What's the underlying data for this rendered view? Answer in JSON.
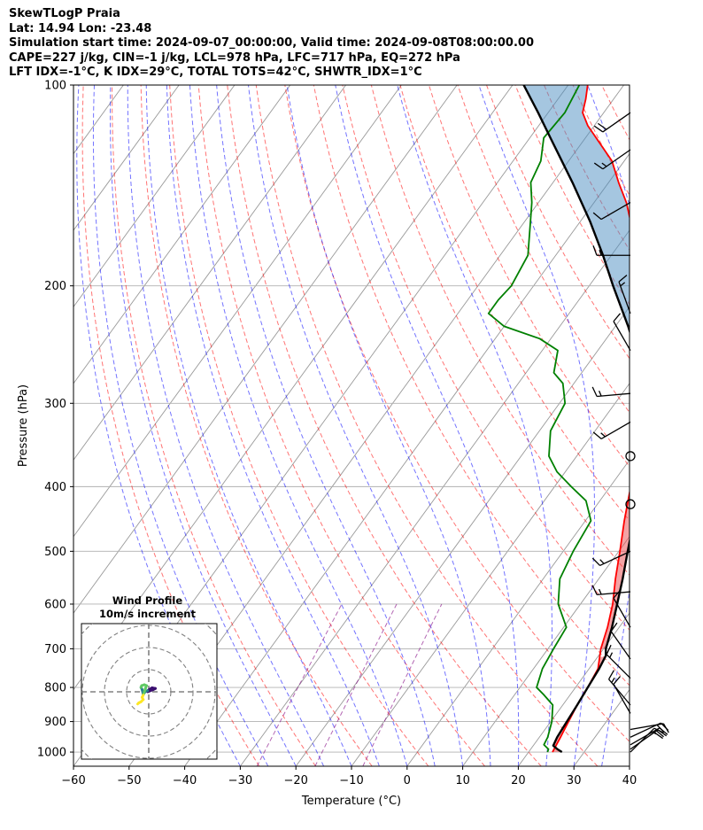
{
  "header": {
    "line1": "SkewTLogP Praia",
    "line2": "Lat: 14.94   Lon: -23.48",
    "line3": "Simulation start time: 2024-09-07_00:00:00, Valid time: 2024-09-08T08:00:00.00",
    "line4": "CAPE=227 j/kg, CIN=-1 j/kg, LCL=978 hPa, LFC=717 hPa, EQ=272 hPa",
    "line5": "LFT IDX=-1°C, K IDX=29°C, TOTAL TOTS=42°C, SHWTR_IDX=1°C"
  },
  "chart_data": [
    {
      "type": "skew-t log-p",
      "title": "SkewTLogP Praia",
      "xlabel": "Temperature (°C)",
      "ylabel": "Pressure (hPa)",
      "xlim": [
        -60,
        40
      ],
      "ylim": [
        1050,
        100
      ],
      "yscale": "log",
      "grid": true,
      "x_ticks": [
        "−60",
        "−50",
        "−40",
        "−30",
        "−20",
        "−10",
        "0",
        "10",
        "20",
        "30",
        "40"
      ],
      "y_ticks": [
        "1000",
        "900",
        "800",
        "700",
        "600",
        "500",
        "400",
        "300",
        "200",
        "100"
      ],
      "series": [
        {
          "kind": "temperature",
          "color": "#ff0000",
          "points": [
            [
              1000,
              24.3
            ],
            [
              950,
              23.8
            ],
            [
              900,
              23.2
            ],
            [
              850,
              22.6
            ],
            [
              800,
              22.2
            ],
            [
              750,
              21.6
            ],
            [
              700,
              19.5
            ],
            [
              650,
              17.9
            ],
            [
              600,
              15.8
            ],
            [
              550,
              13.0
            ],
            [
              500,
              10.2
            ],
            [
              450,
              7.0
            ],
            [
              400,
              3.7
            ],
            [
              350,
              0.0
            ],
            [
              300,
              -5.0
            ],
            [
              270,
              -9.0
            ],
            [
              250,
              -11.8
            ],
            [
              230,
              -15.4
            ],
            [
              210,
              -19.4
            ],
            [
              200,
              -21.7
            ],
            [
              180,
              -25.6
            ],
            [
              160,
              -31.0
            ],
            [
              150,
              -34.2
            ],
            [
              140,
              -38.2
            ],
            [
              130,
              -42.2
            ],
            [
              115,
              -51.2
            ],
            [
              110,
              -53.8
            ],
            [
              105,
              -55.0
            ],
            [
              100,
              -56.5
            ]
          ]
        },
        {
          "kind": "dewpoint",
          "color": "#008000",
          "points": [
            [
              1000,
              23.4
            ],
            [
              990,
              23.2
            ],
            [
              975,
              21.8
            ],
            [
              950,
              21.5
            ],
            [
              900,
              20.2
            ],
            [
              850,
              18.2
            ],
            [
              820,
              15.2
            ],
            [
              800,
              13.0
            ],
            [
              750,
              11.6
            ],
            [
              700,
              11.0
            ],
            [
              650,
              10.5
            ],
            [
              600,
              6.0
            ],
            [
              550,
              3.0
            ],
            [
              500,
              1.8
            ],
            [
              450,
              1.0
            ],
            [
              420,
              -2.5
            ],
            [
              400,
              -7.0
            ],
            [
              380,
              -11.5
            ],
            [
              360,
              -15.0
            ],
            [
              330,
              -18.0
            ],
            [
              300,
              -19.0
            ],
            [
              280,
              -22.0
            ],
            [
              270,
              -25.0
            ],
            [
              250,
              -27.2
            ],
            [
              240,
              -32.0
            ],
            [
              230,
              -40.0
            ],
            [
              220,
              -44.5
            ],
            [
              210,
              -44.5
            ],
            [
              200,
              -44.0
            ],
            [
              180,
              -45.0
            ],
            [
              160,
              -49.0
            ],
            [
              150,
              -51.2
            ],
            [
              140,
              -54.0
            ],
            [
              130,
              -55.0
            ],
            [
              120,
              -57.5
            ],
            [
              110,
              -57.0
            ],
            [
              100,
              -58.0
            ]
          ]
        },
        {
          "kind": "parcel",
          "color": "#000000",
          "points": [
            [
              1000,
              26.0
            ],
            [
              990,
              24.8
            ],
            [
              978,
              23.6
            ],
            [
              950,
              23.2
            ],
            [
              900,
              22.9
            ],
            [
              850,
              22.6
            ],
            [
              800,
              22.2
            ],
            [
              750,
              21.8
            ],
            [
              717,
              21.3
            ],
            [
              700,
              20.4
            ],
            [
              650,
              18.7
            ],
            [
              600,
              16.6
            ],
            [
              550,
              14.3
            ],
            [
              500,
              11.6
            ],
            [
              450,
              8.7
            ],
            [
              400,
              5.3
            ],
            [
              350,
              1.2
            ],
            [
              300,
              -4.7
            ],
            [
              272,
              -9.0
            ],
            [
              250,
              -13.2
            ],
            [
              230,
              -17.7
            ],
            [
              200,
              -25.7
            ],
            [
              180,
              -31.5
            ],
            [
              160,
              -38.3
            ],
            [
              140,
              -46.5
            ],
            [
              120,
              -56.3
            ],
            [
              110,
              -61.8
            ],
            [
              100,
              -68.0
            ]
          ]
        }
      ],
      "cape_shading_color": "#4b8ec2",
      "cin_shading_color": "#e8474c",
      "dry_adiabat_color": "#ff0000",
      "moist_adiabat_color": "#0000ff",
      "mixing_ratio_color": "#800080",
      "isotherm_color": "#999999",
      "wind_barbs": [
        {
          "pressure": 1000,
          "speed_kt": 15,
          "direction_deg": 45
        },
        {
          "pressure": 990,
          "speed_kt": 20,
          "direction_deg": 55
        },
        {
          "pressure": 975,
          "speed_kt": 20,
          "direction_deg": 60
        },
        {
          "pressure": 950,
          "speed_kt": 20,
          "direction_deg": 65
        },
        {
          "pressure": 925,
          "speed_kt": 10,
          "direction_deg": 80
        },
        {
          "pressure": 875,
          "speed_kt": 10,
          "direction_deg": 330
        },
        {
          "pressure": 850,
          "speed_kt": 15,
          "direction_deg": 320
        },
        {
          "pressure": 775,
          "speed_kt": 15,
          "direction_deg": 315
        },
        {
          "pressure": 725,
          "speed_kt": 10,
          "direction_deg": 325
        },
        {
          "pressure": 650,
          "speed_kt": 10,
          "direction_deg": 330
        },
        {
          "pressure": 575,
          "speed_kt": 15,
          "direction_deg": 265
        },
        {
          "pressure": 500,
          "speed_kt": 15,
          "direction_deg": 245
        },
        {
          "pressure": 425,
          "speed_kt": 0,
          "direction_deg": 0
        },
        {
          "pressure": 360,
          "speed_kt": 0,
          "direction_deg": 0
        },
        {
          "pressure": 320,
          "speed_kt": 15,
          "direction_deg": 240
        },
        {
          "pressure": 290,
          "speed_kt": 15,
          "direction_deg": 265
        },
        {
          "pressure": 250,
          "speed_kt": 10,
          "direction_deg": 330
        },
        {
          "pressure": 220,
          "speed_kt": 15,
          "direction_deg": 340
        },
        {
          "pressure": 180,
          "speed_kt": 15,
          "direction_deg": 270
        },
        {
          "pressure": 150,
          "speed_kt": 10,
          "direction_deg": 240
        },
        {
          "pressure": 125,
          "speed_kt": 15,
          "direction_deg": 235
        },
        {
          "pressure": 110,
          "speed_kt": 20,
          "direction_deg": 235
        }
      ]
    },
    {
      "type": "hodograph",
      "title": "Wind Profile",
      "subtitle": "10m/s increment",
      "ring_increment_ms": 10,
      "line_colors": [
        "#3b0f70",
        "#26828e",
        "#5ec962",
        "#fde725"
      ],
      "points_uv_ms": [
        [
          -0.5,
          0.0
        ],
        [
          2.0,
          1.0
        ],
        [
          3.0,
          1.5
        ],
        [
          1.5,
          1.8
        ],
        [
          0.5,
          1.2
        ],
        [
          -0.5,
          0.5
        ],
        [
          -1.5,
          0.2
        ],
        [
          -2.0,
          -0.5
        ],
        [
          -2.5,
          -1.0
        ],
        [
          -3.0,
          1.0
        ],
        [
          -3.5,
          2.0
        ],
        [
          -3.2,
          2.8
        ],
        [
          -2.0,
          3.2
        ],
        [
          -1.0,
          2.8
        ],
        [
          -1.5,
          1.5
        ],
        [
          -2.5,
          -1.5
        ],
        [
          -3.0,
          -2.5
        ],
        [
          -2.5,
          -3.5
        ],
        [
          -3.5,
          -4.5
        ],
        [
          -4.5,
          -5.0
        ],
        [
          -5.0,
          -5.5
        ]
      ]
    }
  ]
}
